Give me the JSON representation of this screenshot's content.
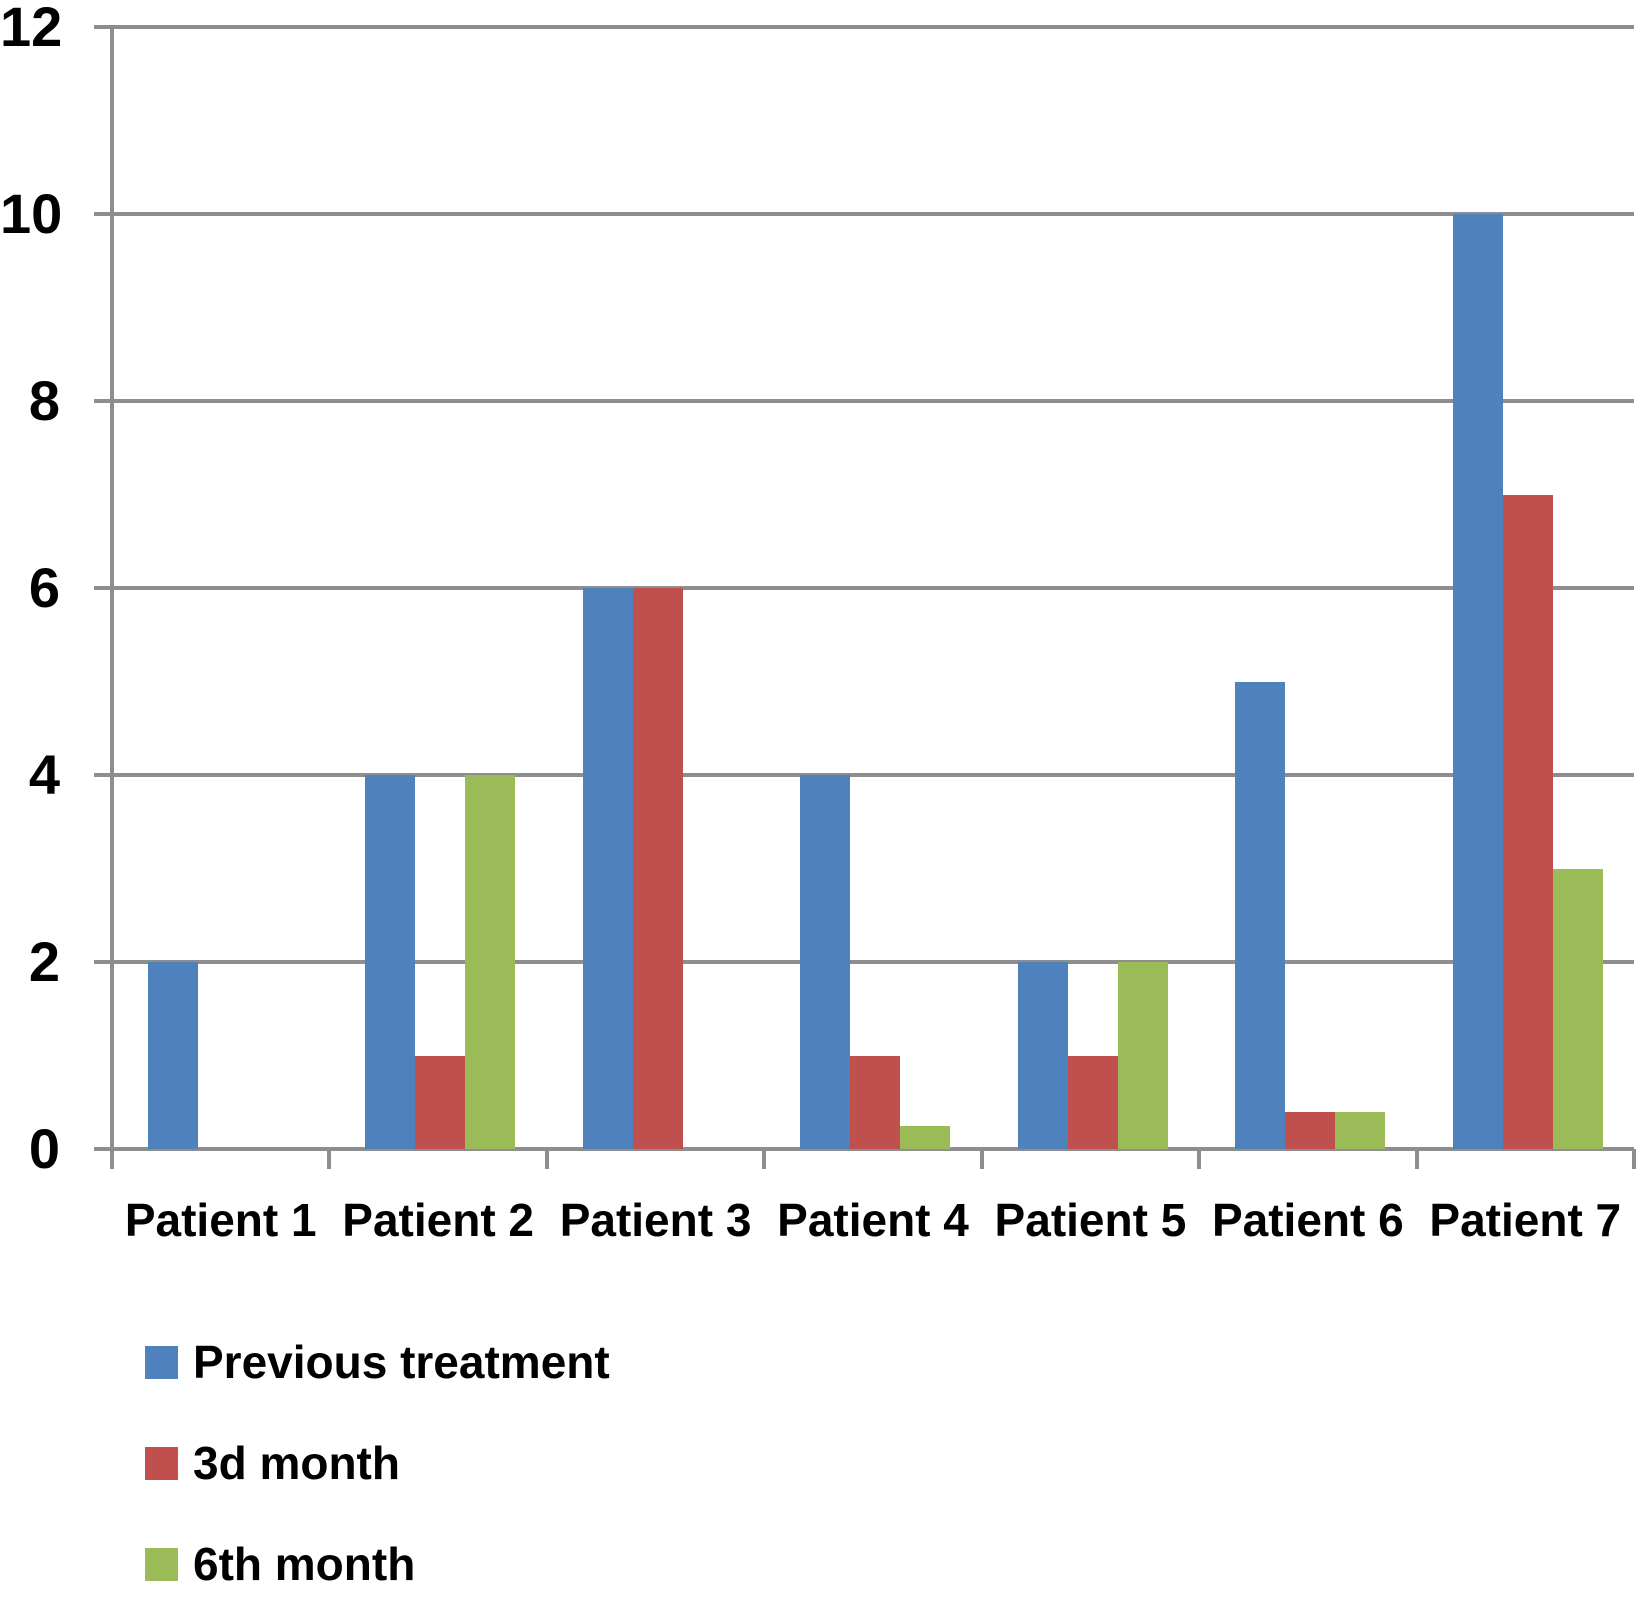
{
  "chart_data": {
    "type": "bar",
    "title": "",
    "xlabel": "",
    "ylabel": "",
    "categories": [
      "Patient 1",
      "Patient 2",
      "Patient 3",
      "Patient 4",
      "Patient 5",
      "Patient 6",
      "Patient 7"
    ],
    "series": [
      {
        "name": "Previous treatment",
        "color": "#4F81BD",
        "values": [
          2,
          4,
          6,
          4,
          2,
          5,
          10
        ]
      },
      {
        "name": "3d month",
        "color": "#C0504D",
        "values": [
          0,
          1,
          6,
          1,
          1,
          0.4,
          7
        ]
      },
      {
        "name": "6th month",
        "color": "#9BBB59",
        "values": [
          0,
          4,
          0,
          0.25,
          2,
          0.4,
          3
        ]
      }
    ],
    "ylim": [
      0,
      12
    ],
    "yticks": [
      0,
      2,
      4,
      6,
      8,
      10,
      12
    ],
    "grid": true,
    "legend_position": "bottom-left",
    "axis_color": "#8E8E8E",
    "text_color": "#000000",
    "background_color": "#FFFFFF"
  }
}
